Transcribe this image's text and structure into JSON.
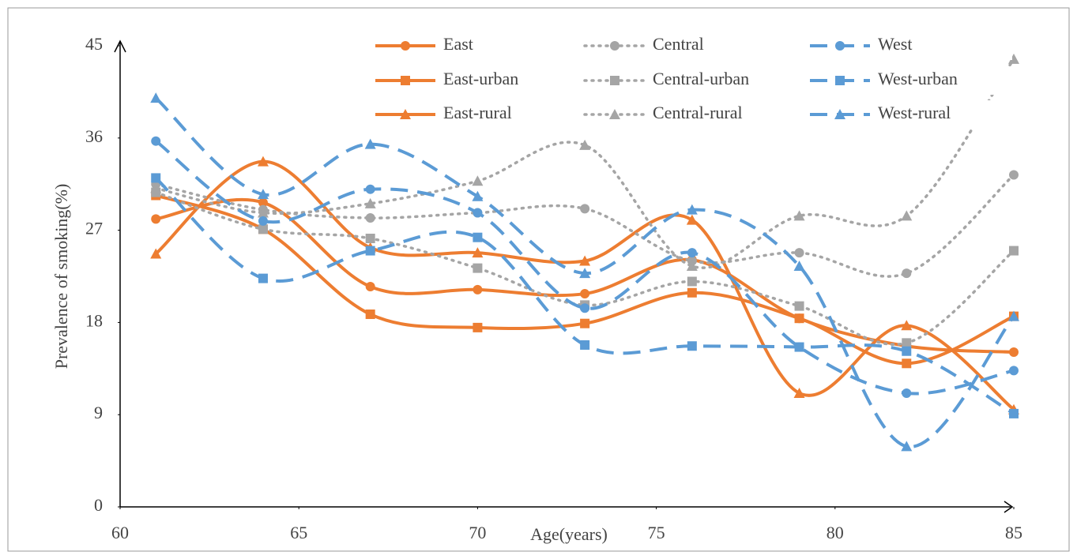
{
  "chart_data": {
    "type": "line",
    "x_label": "Age(years)",
    "y_label": "Prevalence of smoking(%)",
    "xlim": [
      60,
      85
    ],
    "xticks": [
      60,
      65,
      70,
      75,
      80,
      85
    ],
    "ylim": [
      0,
      45
    ],
    "yticks": [
      0,
      9,
      18,
      27,
      36,
      45
    ],
    "grid": false,
    "smooth": true,
    "legend": "top",
    "x": [
      61,
      64,
      67,
      70,
      73,
      76,
      79,
      82,
      85
    ],
    "series": [
      {
        "name": "East",
        "color": "#ed7d31",
        "style": "solid",
        "marker": "circle",
        "values": [
          28.1,
          29.7,
          21.5,
          21.2,
          20.8,
          24.1,
          18.4,
          15.7,
          15.1
        ]
      },
      {
        "name": "East-urban",
        "color": "#ed7d31",
        "style": "solid",
        "marker": "square",
        "values": [
          30.4,
          27.1,
          18.8,
          17.5,
          17.9,
          20.9,
          18.4,
          14.0,
          18.6
        ]
      },
      {
        "name": "East-rural",
        "color": "#ed7d31",
        "style": "solid",
        "marker": "triangle",
        "values": [
          24.7,
          33.7,
          25.3,
          24.8,
          24.0,
          28.0,
          11.1,
          17.7,
          9.5
        ]
      },
      {
        "name": "Central",
        "color": "#a5a5a5",
        "style": "dotted",
        "marker": "circle",
        "values": [
          31.5,
          29.0,
          28.2,
          28.7,
          29.1,
          24.0,
          24.8,
          22.8,
          32.4
        ]
      },
      {
        "name": "Central-urban",
        "color": "#a5a5a5",
        "style": "dotted",
        "marker": "square",
        "values": [
          30.7,
          27.1,
          26.2,
          23.3,
          19.7,
          22.0,
          19.6,
          16.0,
          25.0
        ]
      },
      {
        "name": "Central-rural",
        "color": "#a5a5a5",
        "style": "dotted",
        "marker": "triangle",
        "values": [
          31.1,
          28.7,
          29.6,
          31.8,
          35.3,
          23.5,
          28.4,
          28.4,
          43.7
        ]
      },
      {
        "name": "West",
        "color": "#5b9bd5",
        "style": "dashed",
        "marker": "circle",
        "values": [
          35.7,
          27.9,
          31.0,
          28.7,
          19.4,
          24.8,
          15.6,
          11.1,
          13.3
        ]
      },
      {
        "name": "West-urban",
        "color": "#5b9bd5",
        "style": "dashed",
        "marker": "square",
        "values": [
          32.1,
          22.3,
          25.0,
          26.3,
          15.8,
          15.7,
          15.6,
          15.2,
          9.1
        ]
      },
      {
        "name": "West-rural",
        "color": "#5b9bd5",
        "style": "dashed",
        "marker": "triangle",
        "values": [
          39.9,
          30.5,
          35.4,
          30.3,
          22.8,
          29.0,
          23.5,
          5.9,
          18.6
        ]
      }
    ]
  }
}
